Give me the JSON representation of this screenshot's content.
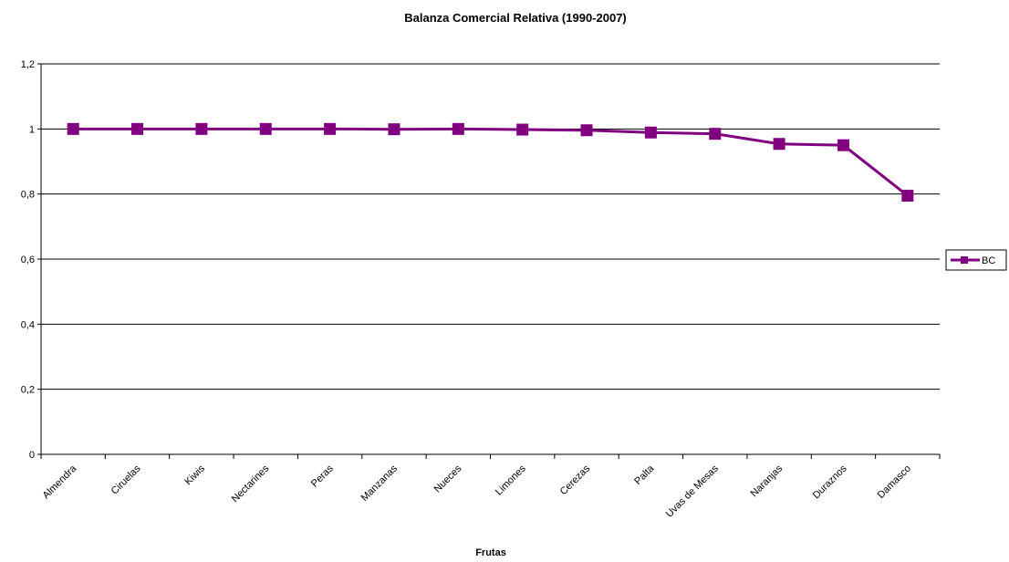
{
  "chart_data": {
    "type": "line",
    "title": "Balanza Comercial Relativa (1990-2007)",
    "xlabel": "Frutas",
    "ylabel": "",
    "categories": [
      "Almendra",
      "Ciruelas",
      "Kiwis",
      "Nectarines",
      "Peras",
      "Manzanas",
      "Nueces",
      "Limones",
      "Cerezas",
      "Palta",
      "Uvas de Mesas",
      "Naranjas",
      "Duraznos",
      "Damasco"
    ],
    "series": [
      {
        "name": "BC",
        "values": [
          1.0,
          1.0,
          1.0,
          1.0,
          1.0,
          0.999,
          1.0,
          0.998,
          0.996,
          0.989,
          0.985,
          0.954,
          0.95,
          0.795
        ]
      }
    ],
    "ylim": [
      0,
      1.2
    ],
    "yticks": [
      "0",
      "0,2",
      "0,4",
      "0,6",
      "0,8",
      "1",
      "1,2"
    ],
    "grid": true,
    "legend_position": "right",
    "series_color": "#800080"
  }
}
